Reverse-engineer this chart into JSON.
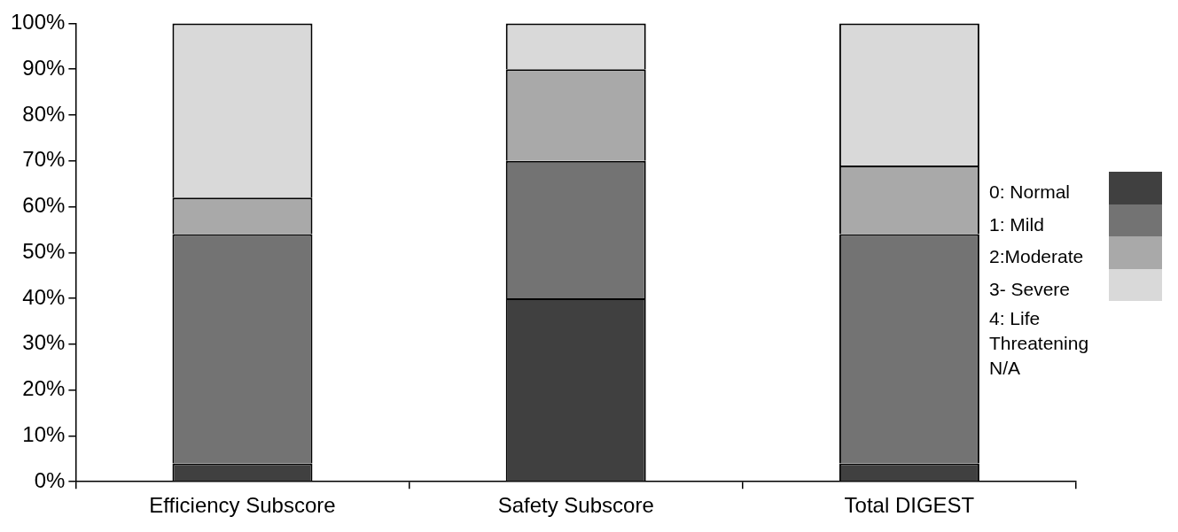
{
  "chart_data": {
    "type": "bar",
    "stacked": true,
    "categories": [
      "Efficiency Subscore",
      "Safety Subscore",
      "Total DIGEST"
    ],
    "series": [
      {
        "name": "0: Normal",
        "color": "#404040",
        "values": [
          4,
          40,
          4
        ]
      },
      {
        "name": "1: Mild",
        "color": "#737373",
        "values": [
          50,
          30,
          50
        ]
      },
      {
        "name": "2:Moderate",
        "color": "#a9a9a9",
        "values": [
          8,
          20,
          15
        ]
      },
      {
        "name": "3- Severe",
        "color": "#d9d9d9",
        "values": [
          38,
          10,
          31
        ]
      }
    ],
    "ylim": [
      0,
      100
    ],
    "yticks": [
      {
        "value": 0,
        "label": "0%"
      },
      {
        "value": 10,
        "label": "10%"
      },
      {
        "value": 20,
        "label": "20%"
      },
      {
        "value": 30,
        "label": "30%"
      },
      {
        "value": 40,
        "label": "40%"
      },
      {
        "value": 50,
        "label": "50%"
      },
      {
        "value": 60,
        "label": "60%"
      },
      {
        "value": 70,
        "label": "70%"
      },
      {
        "value": 80,
        "label": "80%"
      },
      {
        "value": 90,
        "label": "90%"
      },
      {
        "value": 100,
        "label": "100%"
      }
    ],
    "grid": false,
    "legend": "right",
    "annotations": [
      "4: Life Threatening N/A"
    ]
  }
}
